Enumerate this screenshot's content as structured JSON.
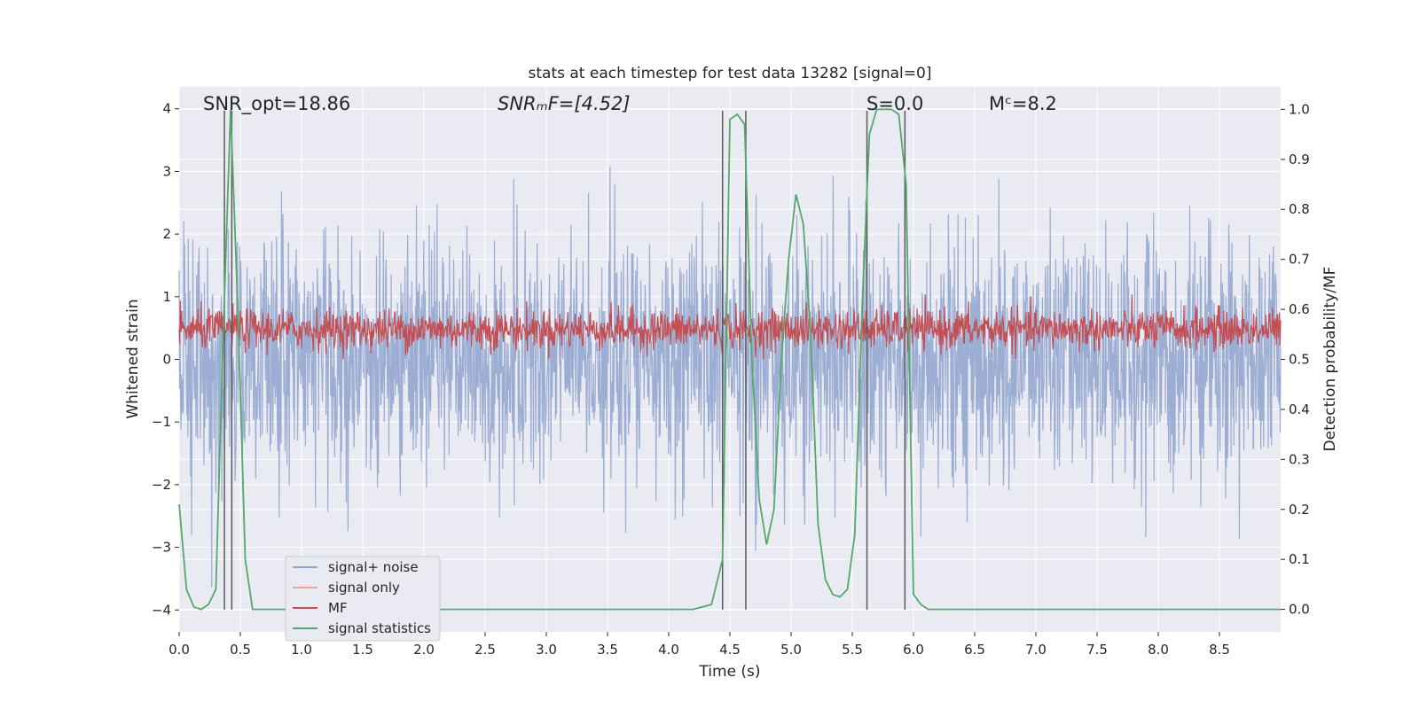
{
  "chart_data": {
    "type": "line",
    "title": "stats at each timestep for test data 13282 [signal=0]",
    "xlabel": "Time (s)",
    "ylabel": "Whitened strain",
    "y2label": "Detection probability/MF",
    "xlim": [
      0.0,
      9.0
    ],
    "ylim": [
      -4.35,
      4.35
    ],
    "y2lim": [
      -0.045,
      1.045
    ],
    "xticks": [
      0.0,
      0.5,
      1.0,
      1.5,
      2.0,
      2.5,
      3.0,
      3.5,
      4.0,
      4.5,
      5.0,
      5.5,
      6.0,
      6.5,
      7.0,
      7.5,
      8.0,
      8.5
    ],
    "xtick_labels": [
      "0.0",
      "0.5",
      "1.0",
      "1.5",
      "2.0",
      "2.5",
      "3.0",
      "3.5",
      "4.0",
      "4.5",
      "5.0",
      "5.5",
      "6.0",
      "6.5",
      "7.0",
      "7.5",
      "8.0",
      "8.5"
    ],
    "yticks": [
      4,
      3,
      2,
      1,
      0,
      -1,
      -2,
      -3,
      -4
    ],
    "ytick_labels": [
      "4",
      "3",
      "2",
      "1",
      "0",
      "−1",
      "−2",
      "−3",
      "−4"
    ],
    "y2ticks": [
      1.0,
      0.9,
      0.8,
      0.7,
      0.6,
      0.5,
      0.4,
      0.3,
      0.2,
      0.1,
      0.0
    ],
    "y2tick_labels": [
      "1.0",
      "0.9",
      "0.8",
      "0.7",
      "0.6",
      "0.5",
      "0.4",
      "0.3",
      "0.2",
      "0.1",
      "0.0"
    ],
    "grid": true,
    "legend_position": "lower-left",
    "annotations": [
      {
        "text": "SNR_opt=18.86",
        "x": 0.2
      },
      {
        "text": "SNRₘF=[4.52]",
        "x": 2.6
      },
      {
        "text": "S=0.0",
        "x": 5.6
      },
      {
        "text": "Mᶜ=8.2",
        "x": 6.6
      }
    ],
    "series": [
      {
        "name": "signal+ noise",
        "color": "#8da2cc",
        "axis": "left",
        "style": "noise",
        "amplitude_typical": 1.6,
        "amplitude_max": 3.9,
        "t_start": 0.0,
        "t_end": 9.0
      },
      {
        "name": "signal only",
        "color": "#e8a98c",
        "axis": "left",
        "style": "flat"
      },
      {
        "name": "MF",
        "color": "#c44e52",
        "axis": "right",
        "style": "noise",
        "center": 0.56,
        "range": [
          0.5,
          0.63
        ]
      },
      {
        "name": "signal statistics",
        "color": "#55a868",
        "axis": "right",
        "x": [
          0.0,
          0.06,
          0.12,
          0.18,
          0.24,
          0.3,
          0.36,
          0.42,
          0.48,
          0.54,
          0.6,
          0.66,
          1.0,
          2.0,
          3.0,
          4.0,
          4.2,
          4.35,
          4.44,
          4.5,
          4.56,
          4.62,
          4.68,
          4.74,
          4.8,
          4.86,
          4.92,
          4.98,
          5.04,
          5.1,
          5.16,
          5.22,
          5.28,
          5.34,
          5.4,
          5.46,
          5.52,
          5.58,
          5.64,
          5.7,
          5.76,
          5.82,
          5.88,
          5.94,
          6.0,
          6.06,
          6.12,
          6.18,
          6.5,
          7.0,
          8.0,
          9.0
        ],
        "y": [
          0.21,
          0.04,
          0.005,
          0.0,
          0.01,
          0.04,
          0.55,
          1.0,
          0.6,
          0.1,
          0.0,
          0.0,
          0.0,
          0.0,
          0.0,
          0.0,
          0.0,
          0.01,
          0.1,
          0.98,
          0.99,
          0.97,
          0.5,
          0.22,
          0.13,
          0.2,
          0.5,
          0.7,
          0.83,
          0.77,
          0.55,
          0.17,
          0.06,
          0.03,
          0.025,
          0.04,
          0.15,
          0.6,
          0.95,
          1.0,
          1.0,
          1.0,
          0.99,
          0.85,
          0.03,
          0.01,
          0.0,
          0.0,
          0.0,
          0.0,
          0.0,
          0.0
        ]
      }
    ],
    "vertical_markers_x": [
      0.37,
      0.43,
      4.44,
      4.63,
      5.62,
      5.93
    ]
  }
}
